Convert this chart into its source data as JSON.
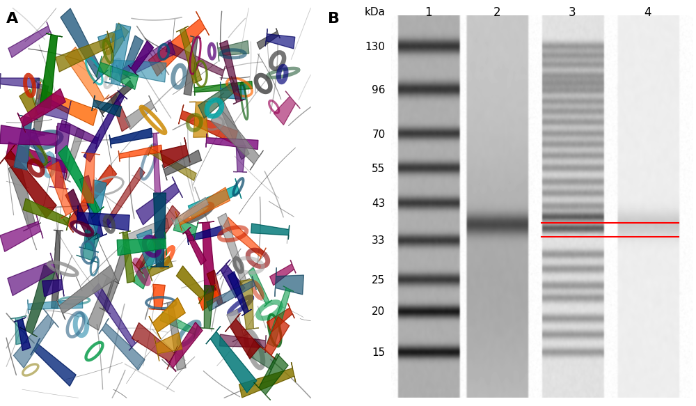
{
  "panel_A_label": "A",
  "panel_B_label": "B",
  "kda_labels": [
    "130",
    "96",
    "70",
    "55",
    "43",
    "33",
    "25",
    "20",
    "15"
  ],
  "kda_values": [
    130,
    96,
    70,
    55,
    43,
    33,
    25,
    20,
    15
  ],
  "lane_labels": [
    "1",
    "2",
    "3",
    "4"
  ],
  "red_line_1_kda": 37.5,
  "red_line_2_kda": 34.0,
  "bg_color": "#ffffff",
  "label_fontsize": 11,
  "lane_label_fontsize": 12,
  "kda_fontsize": 11,
  "panel_label_fontsize": 16,
  "protein_colors": [
    "#8B0000",
    "#CC2200",
    "#FF4400",
    "#FF6600",
    "#CC8800",
    "#887700",
    "#005500",
    "#007700",
    "#009944",
    "#007777",
    "#005577",
    "#002277",
    "#000077",
    "#220077",
    "#550077",
    "#770077",
    "#990055",
    "#550033",
    "#336688",
    "#004466",
    "#00AAAA",
    "#2288AA",
    "#336644",
    "#557700",
    "#444444",
    "#666666",
    "#888888",
    "#AAAAAA"
  ]
}
